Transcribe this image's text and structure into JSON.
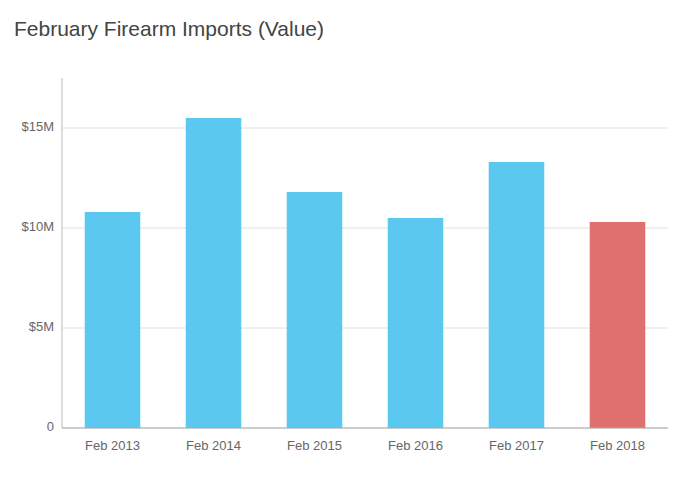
{
  "chart_data": {
    "type": "bar",
    "title": "February Firearm Imports (Value)",
    "categories": [
      "Feb 2013",
      "Feb 2014",
      "Feb 2015",
      "Feb 2016",
      "Feb 2017",
      "Feb 2018"
    ],
    "values": [
      10800000,
      15500000,
      11800000,
      10500000,
      13300000,
      10300000
    ],
    "colors": [
      "#5BC8F0",
      "#5BC8F0",
      "#5BC8F0",
      "#5BC8F0",
      "#5BC8F0",
      "#E07070"
    ],
    "ylim": [
      0,
      17500000
    ],
    "yticks": [
      0,
      {
        "value": 5000000,
        "label": "$5M"
      },
      {
        "value": 10000000,
        "label": "$10M"
      },
      {
        "value": 15000000,
        "label": "$15M"
      }
    ],
    "grid": true
  }
}
